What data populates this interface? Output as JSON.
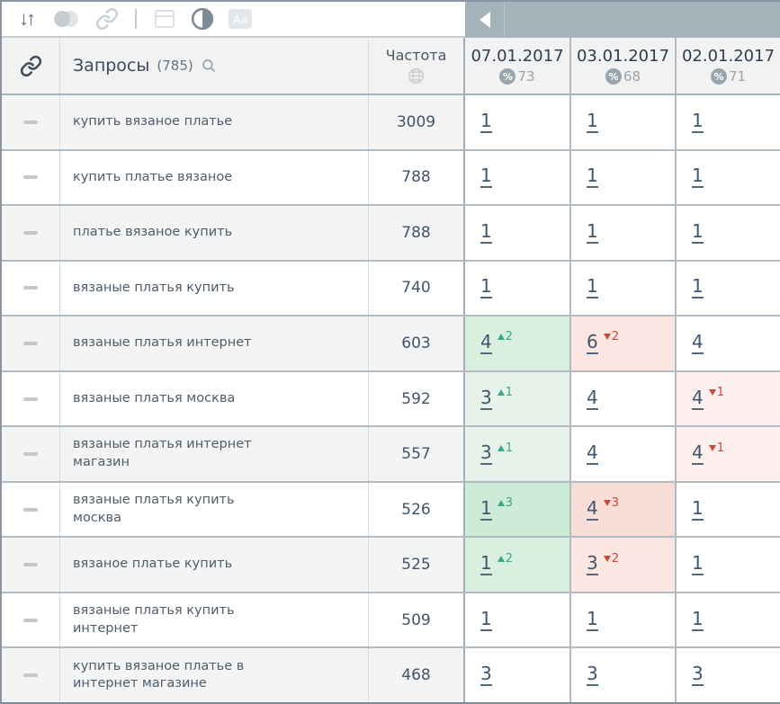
{
  "toolbar": {
    "sort_glyph": "↓↑",
    "text_style_label": "Aa",
    "icons": [
      "sort-icon",
      "layers-icon",
      "link-icon",
      "window-icon",
      "contrast-icon",
      "text-style-icon"
    ],
    "collapse_button": "left-arrow"
  },
  "header": {
    "queries_label": "Запросы",
    "queries_count": "(785)",
    "frequency_label": "Частота",
    "percent_sign": "%",
    "dates": [
      {
        "date": "07.01.2017",
        "percent": "73"
      },
      {
        "date": "03.01.2017",
        "percent": "68"
      },
      {
        "date": "02.01.2017",
        "percent": "71"
      }
    ]
  },
  "colors": {
    "up_text": "#3aa789",
    "down_text": "#c8483b",
    "band": "#a6b2ba",
    "link": "#3f566c",
    "up_bg_1": "#e7f3ea",
    "up_bg_2": "#d9efdf",
    "up_bg_3": "#cdecd7",
    "down_bg_1": "#fdf0ee",
    "down_bg_2": "#fbe6e2",
    "down_bg_3": "#f9ddd8"
  },
  "rows": [
    {
      "query": "купить вязаное платье",
      "frequency": "3009",
      "positions": [
        {
          "value": "1"
        },
        {
          "value": "1"
        },
        {
          "value": "1"
        }
      ]
    },
    {
      "query": "купить платье вязаное",
      "frequency": "788",
      "positions": [
        {
          "value": "1"
        },
        {
          "value": "1"
        },
        {
          "value": "1"
        }
      ]
    },
    {
      "query": "платье вязаное купить",
      "frequency": "788",
      "positions": [
        {
          "value": "1"
        },
        {
          "value": "1"
        },
        {
          "value": "1"
        }
      ]
    },
    {
      "query": "вязаные платья купить",
      "frequency": "740",
      "positions": [
        {
          "value": "1"
        },
        {
          "value": "1"
        },
        {
          "value": "1"
        }
      ]
    },
    {
      "query": "вязаные платья интернет",
      "frequency": "603",
      "positions": [
        {
          "value": "4",
          "delta": "2",
          "dir": "up",
          "bg": "#d9efdf"
        },
        {
          "value": "6",
          "delta": "2",
          "dir": "down",
          "bg": "#fbe6e2"
        },
        {
          "value": "4"
        }
      ]
    },
    {
      "query": "вязаные платья москва",
      "frequency": "592",
      "positions": [
        {
          "value": "3",
          "delta": "1",
          "dir": "up",
          "bg": "#e7f3ea"
        },
        {
          "value": "4"
        },
        {
          "value": "4",
          "delta": "1",
          "dir": "down",
          "bg": "#fdf0ee"
        }
      ]
    },
    {
      "query": "вязаные платья интернет магазин",
      "frequency": "557",
      "positions": [
        {
          "value": "3",
          "delta": "1",
          "dir": "up",
          "bg": "#e7f3ea"
        },
        {
          "value": "4"
        },
        {
          "value": "4",
          "delta": "1",
          "dir": "down",
          "bg": "#fdf0ee"
        }
      ]
    },
    {
      "query": "вязаные платья купить москва",
      "frequency": "526",
      "positions": [
        {
          "value": "1",
          "delta": "3",
          "dir": "up",
          "bg": "#cdecd7"
        },
        {
          "value": "4",
          "delta": "3",
          "dir": "down",
          "bg": "#f9ddd8"
        },
        {
          "value": "1"
        }
      ]
    },
    {
      "query": "вязаное платье купить",
      "frequency": "525",
      "positions": [
        {
          "value": "1",
          "delta": "2",
          "dir": "up",
          "bg": "#d9efdf"
        },
        {
          "value": "3",
          "delta": "2",
          "dir": "down",
          "bg": "#fbe6e2"
        },
        {
          "value": "1"
        }
      ]
    },
    {
      "query": "вязаные платья купить интернет",
      "frequency": "509",
      "positions": [
        {
          "value": "1"
        },
        {
          "value": "1"
        },
        {
          "value": "1"
        }
      ]
    },
    {
      "query": "купить вязаное платье в интернет магазине",
      "frequency": "468",
      "positions": [
        {
          "value": "3"
        },
        {
          "value": "3"
        },
        {
          "value": "3"
        }
      ]
    }
  ]
}
